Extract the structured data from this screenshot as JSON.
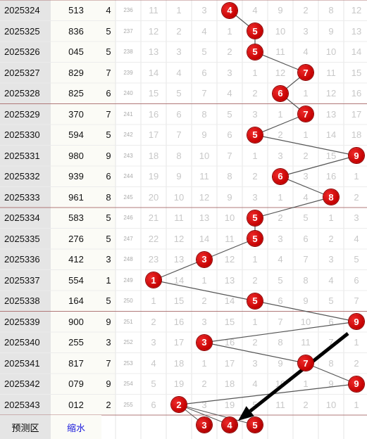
{
  "table": {
    "rows": [
      {
        "issue": "2025324",
        "number": "513",
        "sum": "4",
        "index": "236",
        "pick": 4,
        "miss": [
          "11",
          "1",
          "3",
          "",
          "4",
          "9",
          "2",
          "8",
          "12"
        ]
      },
      {
        "issue": "2025325",
        "number": "836",
        "sum": "5",
        "index": "237",
        "pick": 5,
        "miss": [
          "12",
          "2",
          "4",
          "1",
          "",
          "10",
          "3",
          "9",
          "13"
        ]
      },
      {
        "issue": "2025326",
        "number": "045",
        "sum": "5",
        "index": "238",
        "pick": 5,
        "miss": [
          "13",
          "3",
          "5",
          "2",
          "",
          "11",
          "4",
          "10",
          "14"
        ]
      },
      {
        "issue": "2025327",
        "number": "829",
        "sum": "7",
        "index": "239",
        "pick": 7,
        "miss": [
          "14",
          "4",
          "6",
          "3",
          "1",
          "12",
          "",
          "11",
          "15"
        ]
      },
      {
        "issue": "2025328",
        "number": "825",
        "sum": "6",
        "index": "240",
        "pick": 6,
        "miss": [
          "15",
          "5",
          "7",
          "4",
          "2",
          "",
          "1",
          "12",
          "16"
        ]
      },
      {
        "issue": "2025329",
        "number": "370",
        "sum": "7",
        "index": "241",
        "pick": 7,
        "miss": [
          "16",
          "6",
          "8",
          "5",
          "3",
          "1",
          "",
          "13",
          "17"
        ]
      },
      {
        "issue": "2025330",
        "number": "594",
        "sum": "5",
        "index": "242",
        "pick": 5,
        "miss": [
          "17",
          "7",
          "9",
          "6",
          "",
          "2",
          "1",
          "14",
          "18"
        ]
      },
      {
        "issue": "2025331",
        "number": "980",
        "sum": "9",
        "index": "243",
        "pick": 9,
        "miss": [
          "18",
          "8",
          "10",
          "7",
          "1",
          "3",
          "2",
          "15",
          ""
        ]
      },
      {
        "issue": "2025332",
        "number": "939",
        "sum": "6",
        "index": "244",
        "pick": 6,
        "miss": [
          "19",
          "9",
          "11",
          "8",
          "2",
          "",
          "3",
          "16",
          "1"
        ]
      },
      {
        "issue": "2025333",
        "number": "961",
        "sum": "8",
        "index": "245",
        "pick": 8,
        "miss": [
          "20",
          "10",
          "12",
          "9",
          "3",
          "1",
          "4",
          "",
          "2"
        ]
      },
      {
        "issue": "2025334",
        "number": "583",
        "sum": "5",
        "index": "246",
        "pick": 5,
        "miss": [
          "21",
          "11",
          "13",
          "10",
          "",
          "2",
          "5",
          "1",
          "3"
        ]
      },
      {
        "issue": "2025335",
        "number": "276",
        "sum": "5",
        "index": "247",
        "pick": 5,
        "miss": [
          "22",
          "12",
          "14",
          "11",
          "",
          "3",
          "6",
          "2",
          "4"
        ]
      },
      {
        "issue": "2025336",
        "number": "412",
        "sum": "3",
        "index": "248",
        "pick": 3,
        "miss": [
          "23",
          "13",
          "",
          "12",
          "1",
          "4",
          "7",
          "3",
          "5"
        ]
      },
      {
        "issue": "2025337",
        "number": "554",
        "sum": "1",
        "index": "249",
        "pick": 1,
        "miss": [
          "",
          "14",
          "1",
          "13",
          "2",
          "5",
          "8",
          "4",
          "6"
        ]
      },
      {
        "issue": "2025338",
        "number": "164",
        "sum": "5",
        "index": "250",
        "pick": 5,
        "miss": [
          "1",
          "15",
          "2",
          "14",
          "",
          "6",
          "9",
          "5",
          "7"
        ]
      },
      {
        "issue": "2025339",
        "number": "900",
        "sum": "9",
        "index": "251",
        "pick": 9,
        "miss": [
          "2",
          "16",
          "3",
          "15",
          "1",
          "7",
          "10",
          "6",
          ""
        ]
      },
      {
        "issue": "2025340",
        "number": "255",
        "sum": "3",
        "index": "252",
        "pick": 3,
        "miss": [
          "3",
          "17",
          "",
          "16",
          "2",
          "8",
          "11",
          "7",
          "1"
        ]
      },
      {
        "issue": "2025341",
        "number": "817",
        "sum": "7",
        "index": "253",
        "pick": 7,
        "miss": [
          "4",
          "18",
          "1",
          "17",
          "3",
          "9",
          "",
          "8",
          "2"
        ]
      },
      {
        "issue": "2025342",
        "number": "079",
        "sum": "9",
        "index": "254",
        "pick": 9,
        "miss": [
          "5",
          "19",
          "2",
          "18",
          "4",
          "10",
          "1",
          "9",
          ""
        ]
      },
      {
        "issue": "2025343",
        "number": "012",
        "sum": "2",
        "index": "255",
        "pick": 2,
        "miss": [
          "6",
          "",
          "3",
          "19",
          "5",
          "11",
          "2",
          "10",
          "1"
        ]
      }
    ]
  },
  "footer": {
    "label": "预测区",
    "link": "缩水",
    "predictions": [
      3,
      4,
      5
    ]
  },
  "colors": {
    "ball": "#c40000",
    "arrow": "#000000",
    "link": "#1a1adc",
    "group_divider": "#b07878"
  }
}
